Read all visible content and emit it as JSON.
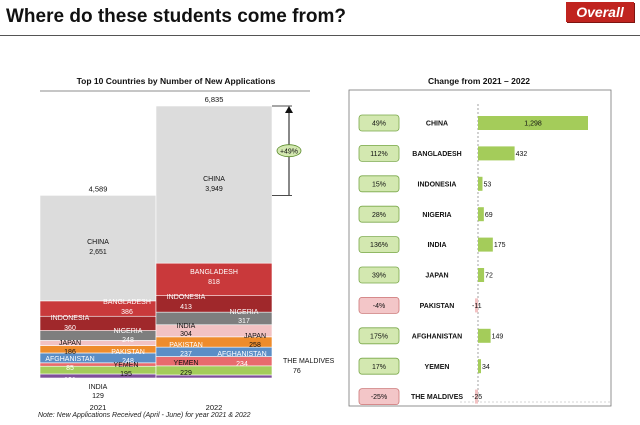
{
  "page": {
    "title": "Where do these students come from?",
    "badge": "Overall",
    "note": "Note: New Applications Received (April - June) for year 2021 & 2022"
  },
  "colors": {
    "CHINA": "#dcdcdc",
    "BANGLADESH": "#c9393b",
    "INDONESIA": "#a0282b",
    "NIGERIA": "#7e7e7e",
    "INDIA": "#f2c2c3",
    "JAPAN": "#ee8c2c",
    "PAKISTAN": "#5b8ec6",
    "AFGHANISTAN": "#e86b6d",
    "YEMEN": "#a4cc5a",
    "THE MALDIVES": "#7f4f9a",
    "positive_box": "#d3e8b0",
    "negative_box": "#f3c6c8",
    "hbar": "#a4cc5a",
    "hbar_negative": "#f2c2c3"
  },
  "chart_data": [
    {
      "type": "bar",
      "stacked": true,
      "title": "Top 10 Countries by Number of New Applications",
      "categories": [
        "2021",
        "2022"
      ],
      "totals": [
        4589,
        6835
      ],
      "total_labels": [
        "4,589",
        "6,835"
      ],
      "growth_annotation": "+49%",
      "ylim": [
        0,
        6835
      ],
      "series": [
        {
          "name": "THE MALDIVES",
          "values": [
            101,
            76
          ],
          "labels": [
            "101",
            "76"
          ]
        },
        {
          "name": "YEMEN",
          "values": [
            195,
            229
          ],
          "labels": [
            "195",
            "229"
          ]
        },
        {
          "name": "AFGHANISTAN",
          "values": [
            85,
            234
          ],
          "labels": [
            "85",
            "234"
          ]
        },
        {
          "name": "PAKISTAN",
          "values": [
            248,
            237
          ],
          "labels": [
            "248",
            "237"
          ]
        },
        {
          "name": "JAPAN",
          "values": [
            186,
            258
          ],
          "labels": [
            "186",
            "258"
          ]
        },
        {
          "name": "INDIA",
          "values": [
            129,
            304
          ],
          "labels": [
            "129",
            "304"
          ]
        },
        {
          "name": "NIGERIA",
          "values": [
            248,
            317
          ],
          "labels": [
            "248",
            "317"
          ]
        },
        {
          "name": "INDONESIA",
          "values": [
            360,
            413
          ],
          "labels": [
            "360",
            "413"
          ]
        },
        {
          "name": "BANGLADESH",
          "values": [
            386,
            818
          ],
          "labels": [
            "386",
            "818"
          ]
        },
        {
          "name": "CHINA",
          "values": [
            2651,
            3949
          ],
          "labels": [
            "2,651",
            "3,949"
          ]
        }
      ],
      "xlabel": "",
      "ylabel": ""
    },
    {
      "type": "bar",
      "orientation": "horizontal",
      "title": "Change from 2021 – 2022",
      "categories": [
        "CHINA",
        "BANGLADESH",
        "INDONESIA",
        "NIGERIA",
        "INDIA",
        "JAPAN",
        "PAKISTAN",
        "AFGHANISTAN",
        "YEMEN",
        "THE MALDIVES"
      ],
      "pct_change": [
        "49%",
        "112%",
        "15%",
        "28%",
        "136%",
        "39%",
        "-4%",
        "175%",
        "17%",
        "-25%"
      ],
      "values": [
        1298,
        432,
        53,
        69,
        175,
        72,
        -11,
        149,
        34,
        -25
      ],
      "labels": [
        "1,298",
        "432",
        "53",
        "69",
        "175",
        "72",
        "-11",
        "149",
        "34",
        "-25"
      ],
      "xlim": [
        -25,
        1298
      ]
    }
  ]
}
